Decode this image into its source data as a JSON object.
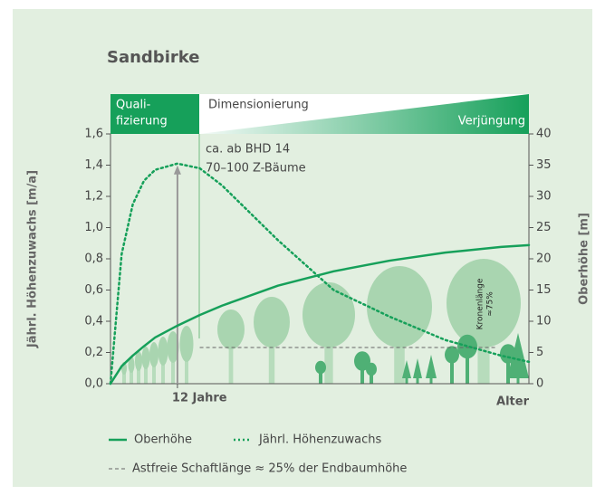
{
  "chart_data": {
    "type": "line",
    "title": "Sandbirke",
    "xlabel": "Alter",
    "ylabel": "Jährl. Höhenzuwachs [m/a]",
    "y2label": "Oberhöhe [m]",
    "xlim": [
      0,
      75
    ],
    "xticks": [
      {
        "value": 12,
        "label": "12 Jahre"
      }
    ],
    "ylim": [
      0,
      1.6
    ],
    "yticks": [
      {
        "value": 0,
        "label": "0,0"
      },
      {
        "value": 0.2,
        "label": "0,2"
      },
      {
        "value": 0.4,
        "label": "0,4"
      },
      {
        "value": 0.6,
        "label": "0,6"
      },
      {
        "value": 0.8,
        "label": "0,8"
      },
      {
        "value": 1.0,
        "label": "1,0"
      },
      {
        "value": 1.2,
        "label": "1,2"
      },
      {
        "value": 1.4,
        "label": "1,4"
      },
      {
        "value": 1.6,
        "label": "1,6"
      }
    ],
    "y2lim": [
      0,
      40
    ],
    "y2ticks": [
      0,
      5,
      10,
      15,
      20,
      25,
      30,
      35,
      40
    ],
    "x": [
      0,
      2,
      4,
      6,
      8,
      12,
      16,
      20,
      30,
      40,
      50,
      60,
      70,
      75
    ],
    "series": [
      {
        "name": "Oberhöhe",
        "color": "#16a05a",
        "style": "solid",
        "axis": "y2",
        "values": [
          0,
          2.8,
          4.5,
          6.0,
          7.4,
          9.3,
          11.0,
          12.5,
          15.7,
          18.0,
          19.7,
          21.0,
          21.9,
          22.2
        ]
      },
      {
        "name": "Jährl. Höhenzuwachs",
        "color": "#16a05a",
        "style": "dotted",
        "axis": "y",
        "values": [
          0,
          0.83,
          1.15,
          1.3,
          1.37,
          1.41,
          1.38,
          1.27,
          0.92,
          0.6,
          0.43,
          0.28,
          0.18,
          0.14
        ]
      }
    ],
    "reference_line": {
      "name": "Astfreie Schaftlänge ≈ 25% der Endbaumhöhe",
      "value": 5.8,
      "axis": "y2",
      "x": [
        16,
        69
      ],
      "color": "#666666"
    },
    "phases": [
      {
        "label": [
          "Quali-",
          "fizierung"
        ]
      },
      {
        "label": "Dimensionierung"
      },
      {
        "label": "Verjüngung"
      }
    ],
    "annotations": [
      "ca. ab BHD 14",
      "70–100 Z-Bäume",
      "Kronenlänge",
      "≈75%"
    ]
  }
}
